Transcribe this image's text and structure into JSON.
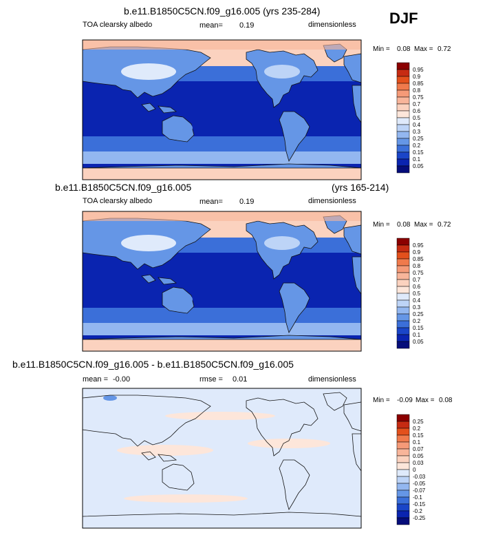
{
  "season": "DJF",
  "panels": [
    {
      "title": "b.e11.B1850C5CN.f09_g16.005 (yrs 235-284)",
      "title_right": "",
      "variable": "TOA clearsky albedo",
      "stat_label": "mean=",
      "stat_value": "0.19",
      "stat2_label": "",
      "stat2_value": "",
      "units": "dimensionless",
      "min_label": "Min =",
      "min_value": "0.08",
      "max_label": "Max =",
      "max_value": "0.72",
      "colorbar_labels": [
        "0.95",
        "0.9",
        "0.85",
        "0.8",
        "0.75",
        "0.7",
        "0.6",
        "0.5",
        "0.4",
        "0.3",
        "0.25",
        "0.2",
        "0.15",
        "0.1",
        "0.05"
      ],
      "colorbar_colors": [
        "#8b0000",
        "#c62b12",
        "#e3501c",
        "#f07a4c",
        "#f59a78",
        "#f8b59a",
        "#fbd2bf",
        "#fde6da",
        "#dfeafb",
        "#bdd4f7",
        "#93b7f0",
        "#6596e6",
        "#3b6fd9",
        "#1a45c8",
        "#0a24b0",
        "#050d7a"
      ]
    },
    {
      "title": "b.e11.B1850C5CN.f09_g16.005",
      "title_right": "(yrs 165-214)",
      "variable": "TOA clearsky albedo",
      "stat_label": "mean=",
      "stat_value": "0.19",
      "stat2_label": "",
      "stat2_value": "",
      "units": "dimensionless",
      "min_label": "Min =",
      "min_value": "0.08",
      "max_label": "Max =",
      "max_value": "0.72",
      "colorbar_labels": [
        "0.95",
        "0.9",
        "0.85",
        "0.8",
        "0.75",
        "0.7",
        "0.6",
        "0.5",
        "0.4",
        "0.3",
        "0.25",
        "0.2",
        "0.15",
        "0.1",
        "0.05"
      ],
      "colorbar_colors": [
        "#8b0000",
        "#c62b12",
        "#e3501c",
        "#f07a4c",
        "#f59a78",
        "#f8b59a",
        "#fbd2bf",
        "#fde6da",
        "#dfeafb",
        "#bdd4f7",
        "#93b7f0",
        "#6596e6",
        "#3b6fd9",
        "#1a45c8",
        "#0a24b0",
        "#050d7a"
      ]
    },
    {
      "title": "b.e11.B1850C5CN.f09_g16.005 - b.e11.B1850C5CN.f09_g16.005",
      "title_right": "",
      "variable": "",
      "stat_label": "mean =",
      "stat_value": "-0.00",
      "stat2_label": "rmse =",
      "stat2_value": "0.01",
      "units": "dimensionless",
      "min_label": "Min =",
      "min_value": "-0.09",
      "max_label": "Max =",
      "max_value": "0.08",
      "colorbar_labels": [
        "0.25",
        "0.2",
        "0.15",
        "0.1",
        "0.07",
        "0.05",
        "0.03",
        "0",
        "-0.03",
        "-0.05",
        "-0.07",
        "-0.1",
        "-0.15",
        "-0.2",
        "-0.25"
      ],
      "colorbar_colors": [
        "#8b0000",
        "#c62b12",
        "#e3501c",
        "#f07a4c",
        "#f59a78",
        "#f8b59a",
        "#fbd2bf",
        "#fde6da",
        "#dfeafb",
        "#bdd4f7",
        "#93b7f0",
        "#6596e6",
        "#3b6fd9",
        "#1a45c8",
        "#0a24b0",
        "#050d7a"
      ]
    }
  ],
  "chart_data": [
    {
      "type": "heatmap",
      "field": "TOA clearsky albedo",
      "case": "b.e11.B1850C5CN.f09_g16.005",
      "years": "235-284",
      "season": "DJF",
      "mean": 0.19,
      "min": 0.08,
      "max": 0.72,
      "units": "dimensionless",
      "levels": [
        0.05,
        0.1,
        0.15,
        0.2,
        0.25,
        0.3,
        0.4,
        0.5,
        0.6,
        0.7,
        0.75,
        0.8,
        0.85,
        0.9,
        0.95
      ]
    },
    {
      "type": "heatmap",
      "field": "TOA clearsky albedo",
      "case": "b.e11.B1850C5CN.f09_g16.005",
      "years": "165-214",
      "season": "DJF",
      "mean": 0.19,
      "min": 0.08,
      "max": 0.72,
      "units": "dimensionless",
      "levels": [
        0.05,
        0.1,
        0.15,
        0.2,
        0.25,
        0.3,
        0.4,
        0.5,
        0.6,
        0.7,
        0.75,
        0.8,
        0.85,
        0.9,
        0.95
      ]
    },
    {
      "type": "heatmap",
      "field": "difference",
      "case": "b.e11.B1850C5CN.f09_g16.005 - b.e11.B1850C5CN.f09_g16.005",
      "season": "DJF",
      "mean": -0.0,
      "rmse": 0.01,
      "min": -0.09,
      "max": 0.08,
      "units": "dimensionless",
      "levels": [
        -0.25,
        -0.2,
        -0.15,
        -0.1,
        -0.07,
        -0.05,
        -0.03,
        0,
        0.03,
        0.05,
        0.07,
        0.1,
        0.15,
        0.2,
        0.25
      ]
    }
  ]
}
